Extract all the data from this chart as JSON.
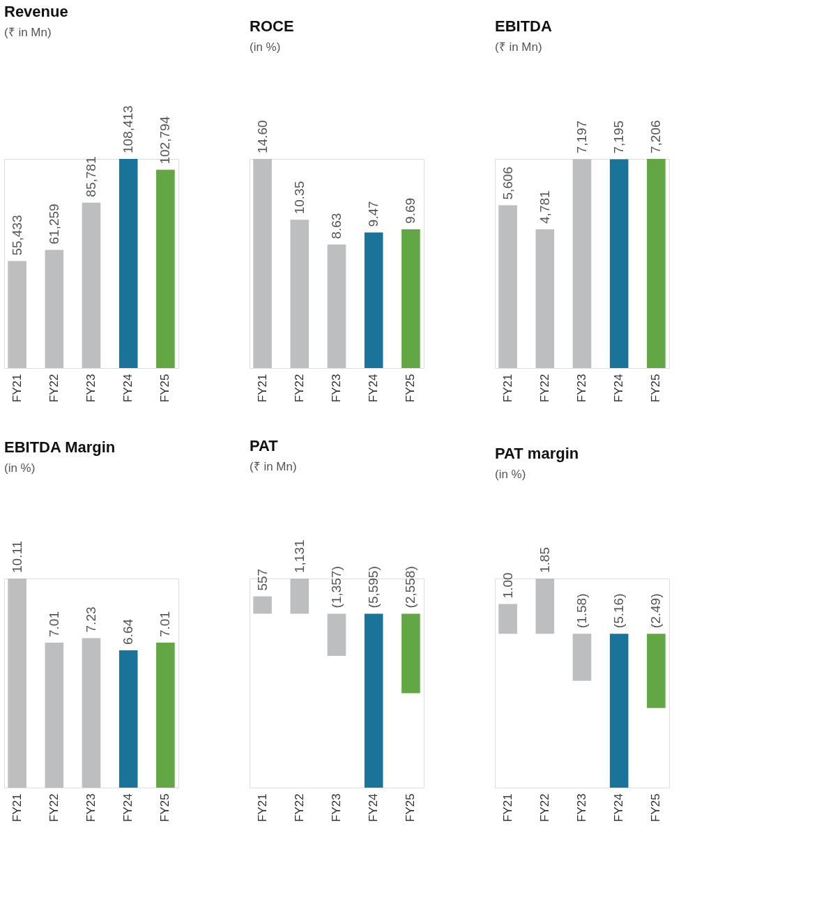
{
  "chart_data": [
    {
      "type": "bar",
      "title": "Revenue",
      "subtitle": "(₹ in Mn)",
      "categories": [
        "FY21",
        "FY22",
        "FY23",
        "FY24",
        "FY25"
      ],
      "values": [
        55433,
        61259,
        85781,
        108413,
        102794
      ],
      "value_labels": [
        "55,433",
        "61,259",
        "85,781",
        "108,413",
        "102,794"
      ],
      "colors": [
        "#bdbec0",
        "#bdbec0",
        "#bdbec0",
        "#1a7499",
        "#62a744"
      ]
    },
    {
      "type": "bar",
      "title": "ROCE",
      "subtitle": "(in %)",
      "categories": [
        "FY21",
        "FY22",
        "FY23",
        "FY24",
        "FY25"
      ],
      "values": [
        14.6,
        10.35,
        8.63,
        9.47,
        9.69
      ],
      "value_labels": [
        "14.60",
        "10.35",
        "8.63",
        "9.47",
        "9.69"
      ],
      "colors": [
        "#bdbec0",
        "#bdbec0",
        "#bdbec0",
        "#1a7499",
        "#62a744"
      ]
    },
    {
      "type": "bar",
      "title": "EBITDA",
      "subtitle": "(₹ in Mn)",
      "categories": [
        "FY21",
        "FY22",
        "FY23",
        "FY24",
        "FY25"
      ],
      "values": [
        5606,
        4781,
        7197,
        7195,
        7206
      ],
      "value_labels": [
        "5,606",
        "4,781",
        "7,197",
        "7,195",
        "7,206"
      ],
      "colors": [
        "#bdbec0",
        "#bdbec0",
        "#bdbec0",
        "#1a7499",
        "#62a744"
      ]
    },
    {
      "type": "bar",
      "title": "EBITDA Margin",
      "subtitle": "(in %)",
      "categories": [
        "FY21",
        "FY22",
        "FY23",
        "FY24",
        "FY25"
      ],
      "values": [
        10.11,
        7.01,
        7.23,
        6.64,
        7.01
      ],
      "value_labels": [
        "10.11",
        "7.01",
        "7.23",
        "6.64",
        "7.01"
      ],
      "colors": [
        "#bdbec0",
        "#bdbec0",
        "#bdbec0",
        "#1a7499",
        "#62a744"
      ]
    },
    {
      "type": "bar",
      "title": "PAT",
      "subtitle": "(₹ in Mn)",
      "categories": [
        "FY21",
        "FY22",
        "FY23",
        "FY24",
        "FY25"
      ],
      "values": [
        557,
        1131,
        -1357,
        -5595,
        -2558
      ],
      "value_labels": [
        "557",
        "1,131",
        "(1,357)",
        "(5,595)",
        "(2,558)"
      ],
      "colors": [
        "#bdbec0",
        "#bdbec0",
        "#bdbec0",
        "#1a7499",
        "#62a744"
      ]
    },
    {
      "type": "bar",
      "title": "PAT margin",
      "subtitle": "(in %)",
      "categories": [
        "FY21",
        "FY22",
        "FY23",
        "FY24",
        "FY25"
      ],
      "values": [
        1.0,
        1.85,
        -1.58,
        -5.16,
        -2.49
      ],
      "value_labels": [
        "1.00",
        "1.85",
        "(1.58)",
        "(5.16)",
        "(2.49)"
      ],
      "colors": [
        "#bdbec0",
        "#bdbec0",
        "#bdbec0",
        "#1a7499",
        "#62a744"
      ]
    }
  ]
}
